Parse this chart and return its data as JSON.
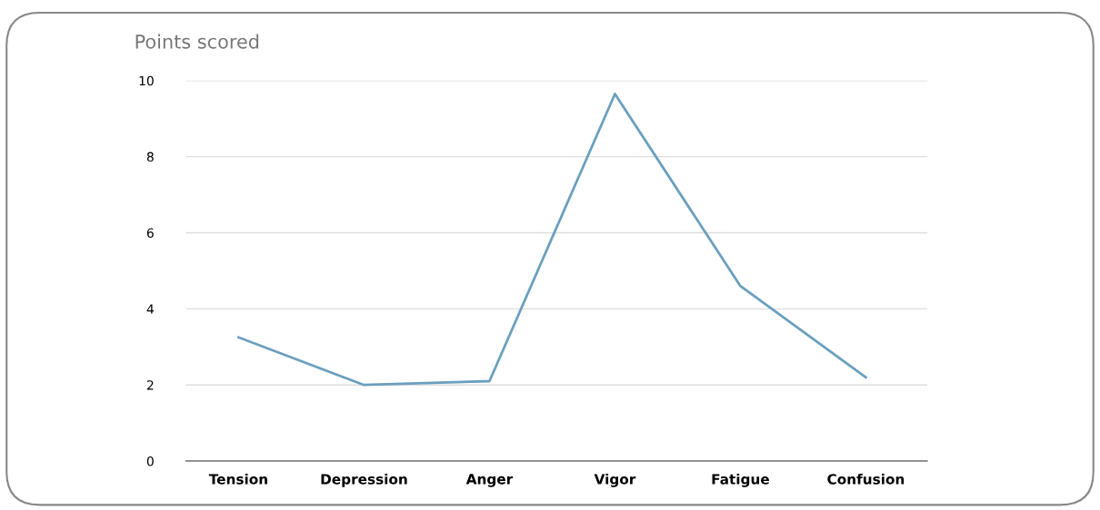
{
  "chart_data": {
    "type": "line",
    "title": "Points scored",
    "categories": [
      "Tension",
      "Depression",
      "Anger",
      "Vigor",
      "Fatigue",
      "Confusion"
    ],
    "series": [
      {
        "color": "#6b9fbe",
        "values": [
          3.25,
          2.0,
          2.1,
          9.65,
          4.6,
          2.2
        ]
      }
    ],
    "ylim": [
      0,
      10
    ],
    "yticks": [
      0,
      2,
      4,
      6,
      8,
      10
    ],
    "grid": "y",
    "legend": false,
    "marker": "none",
    "line_style": "solid"
  }
}
